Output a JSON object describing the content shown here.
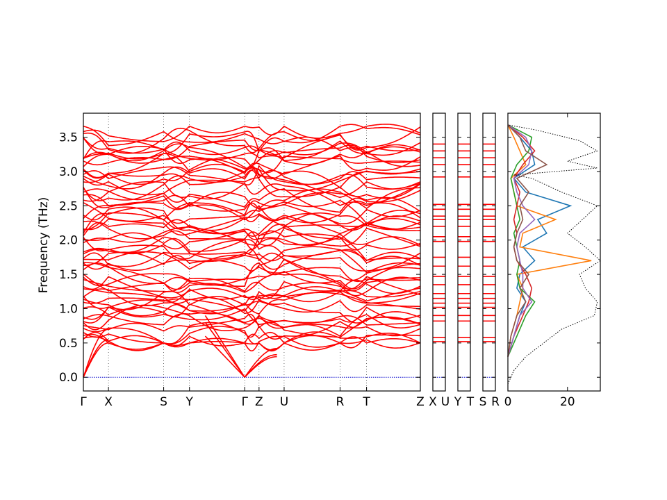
{
  "chart_data": {
    "type": "line",
    "title": "",
    "ylabel": "Frequency (THz)",
    "ylim": [
      -0.2,
      3.85
    ],
    "y_ticks": [
      "0.0",
      "0.5",
      "1.0",
      "1.5",
      "2.0",
      "2.5",
      "3.0",
      "3.5"
    ],
    "band_color": "#ff0000",
    "zero_line_color": "#0000cc",
    "panels": [
      {
        "name": "main-band-panel",
        "k_range": [
          0,
          4.7
        ],
        "k_points": [
          {
            "label": "Γ",
            "k": 0.0
          },
          {
            "label": "X",
            "k": 0.35
          },
          {
            "label": "S",
            "k": 1.12
          },
          {
            "label": "Y",
            "k": 1.48
          },
          {
            "label": "Γ",
            "k": 2.25
          },
          {
            "label": "Z",
            "k": 2.45
          },
          {
            "label": "U",
            "k": 2.8
          },
          {
            "label": "R",
            "k": 3.58
          },
          {
            "label": "T",
            "k": 3.95
          },
          {
            "label": "Z",
            "k": 4.7
          }
        ]
      },
      {
        "name": "segment-X-U",
        "k_points": [
          {
            "label": "X"
          },
          {
            "label": "U"
          }
        ]
      },
      {
        "name": "segment-Y-T",
        "k_points": [
          {
            "label": "Y"
          },
          {
            "label": "T"
          }
        ]
      },
      {
        "name": "segment-S-R",
        "k_points": [
          {
            "label": "S"
          },
          {
            "label": "R"
          }
        ]
      }
    ],
    "flat_band_levels": [
      0.52,
      0.58,
      0.82,
      0.9,
      1.02,
      1.08,
      1.15,
      1.22,
      1.35,
      1.47,
      1.62,
      1.75,
      1.98,
      2.05,
      2.2,
      2.3,
      2.35,
      2.45,
      2.52,
      2.92,
      3.1,
      3.2,
      3.3,
      3.4
    ],
    "dos": {
      "xlim": [
        0,
        31
      ],
      "x_ticks": [
        "0",
        "20"
      ],
      "total": {
        "name": "total",
        "color": "#000000",
        "freq": [
          -0.1,
          0.1,
          0.3,
          0.5,
          0.7,
          0.9,
          1.1,
          1.3,
          1.5,
          1.7,
          1.9,
          2.1,
          2.3,
          2.5,
          2.7,
          2.9,
          2.95,
          3.05,
          3.15,
          3.3,
          3.45,
          3.6,
          3.68
        ],
        "dos": [
          0,
          2,
          6,
          12,
          18,
          29,
          30,
          26,
          24,
          31,
          26,
          20,
          25,
          30,
          18,
          8,
          2,
          30,
          20,
          30,
          24,
          10,
          0
        ]
      },
      "projected": [
        {
          "name": "pdos-1",
          "color": "#1f77b4",
          "freq": [
            0.3,
            0.6,
            0.9,
            1.1,
            1.3,
            1.5,
            1.7,
            1.9,
            2.1,
            2.3,
            2.5,
            2.7,
            2.9,
            3.1,
            3.3,
            3.5,
            3.68
          ],
          "dos": [
            0,
            2,
            4,
            6,
            3,
            4,
            9,
            5,
            13,
            10,
            21,
            6,
            2,
            9,
            8,
            4,
            0
          ]
        },
        {
          "name": "pdos-2",
          "color": "#ff7f0e",
          "freq": [
            0.3,
            0.6,
            0.9,
            1.1,
            1.3,
            1.5,
            1.7,
            1.9,
            2.1,
            2.3,
            2.5,
            2.7,
            2.9,
            3.1,
            3.3,
            3.5,
            3.68
          ],
          "dos": [
            0,
            1,
            3,
            4,
            5,
            3,
            28,
            4,
            5,
            16,
            3,
            2,
            1,
            6,
            4,
            2,
            0
          ]
        },
        {
          "name": "pdos-3",
          "color": "#2ca02c",
          "freq": [
            0.3,
            0.6,
            0.9,
            1.1,
            1.3,
            1.5,
            1.7,
            1.9,
            2.1,
            2.3,
            2.5,
            2.7,
            2.9,
            3.1,
            3.3,
            3.5,
            3.68
          ],
          "dos": [
            0,
            3,
            6,
            9,
            4,
            3,
            4,
            3,
            2,
            4,
            3,
            2,
            1,
            3,
            7,
            8,
            0
          ]
        },
        {
          "name": "pdos-4",
          "color": "#d62728",
          "freq": [
            0.3,
            0.6,
            0.9,
            1.1,
            1.3,
            1.5,
            1.7,
            1.9,
            2.1,
            2.3,
            2.5,
            2.7,
            2.9,
            3.1,
            3.3,
            3.5,
            3.68
          ],
          "dos": [
            0,
            2,
            5,
            7,
            8,
            6,
            3,
            2,
            3,
            2,
            3,
            4,
            2,
            5,
            9,
            5,
            0
          ]
        },
        {
          "name": "pdos-5",
          "color": "#9467bd",
          "freq": [
            0.3,
            0.6,
            0.9,
            1.1,
            1.3,
            1.5,
            1.7,
            1.9,
            2.1,
            2.3,
            2.5,
            2.7,
            2.9,
            3.1,
            3.3,
            3.5,
            3.68
          ],
          "dos": [
            0,
            2,
            4,
            8,
            5,
            5,
            4,
            3,
            4,
            9,
            5,
            3,
            2,
            7,
            8,
            6,
            0
          ]
        },
        {
          "name": "pdos-6",
          "color": "#8c564b",
          "freq": [
            0.3,
            0.6,
            0.9,
            1.1,
            1.3,
            1.5,
            1.7,
            1.9,
            2.1,
            2.3,
            2.5,
            2.7,
            2.9,
            3.1,
            3.3,
            3.5,
            3.68
          ],
          "dos": [
            0,
            1,
            3,
            6,
            4,
            7,
            3,
            2,
            3,
            5,
            4,
            7,
            3,
            13,
            6,
            4,
            0
          ]
        }
      ]
    }
  }
}
